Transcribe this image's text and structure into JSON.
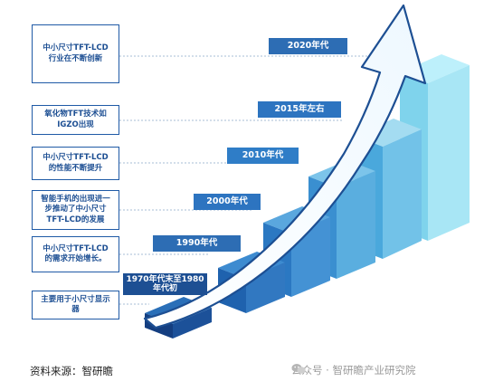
{
  "milestones": [
    {
      "description": "中小尺寸TFT-LCD\n行业在不断创新",
      "era": "2020年代"
    },
    {
      "description": "氧化物TFT技术如\nIGZO出现",
      "era": "2015年左右"
    },
    {
      "description": "中小尺寸TFT-LCD\n的性能不断提升",
      "era": "2010年代"
    },
    {
      "description": "智能手机的出现进一\n步推动了中小尺寸\nTFT-LCD的发展",
      "era": "2000年代"
    },
    {
      "description": "中小尺寸TFT-LCD\n的需求开始增长。",
      "era": "1990年代"
    },
    {
      "description": "主要用于小尺寸显示\n器",
      "era": "1970年代末至1980\n年代初"
    }
  ],
  "footer": {
    "source": "资料来源：智研瞻",
    "watermark": "公众号 · 智研瞻产业研究院"
  },
  "colors": {
    "box_border": "#1f5aa6",
    "text_blue": "#1d4f93",
    "dark_blue": "#1d4f93",
    "light_cyan": "#9fe1f2"
  }
}
